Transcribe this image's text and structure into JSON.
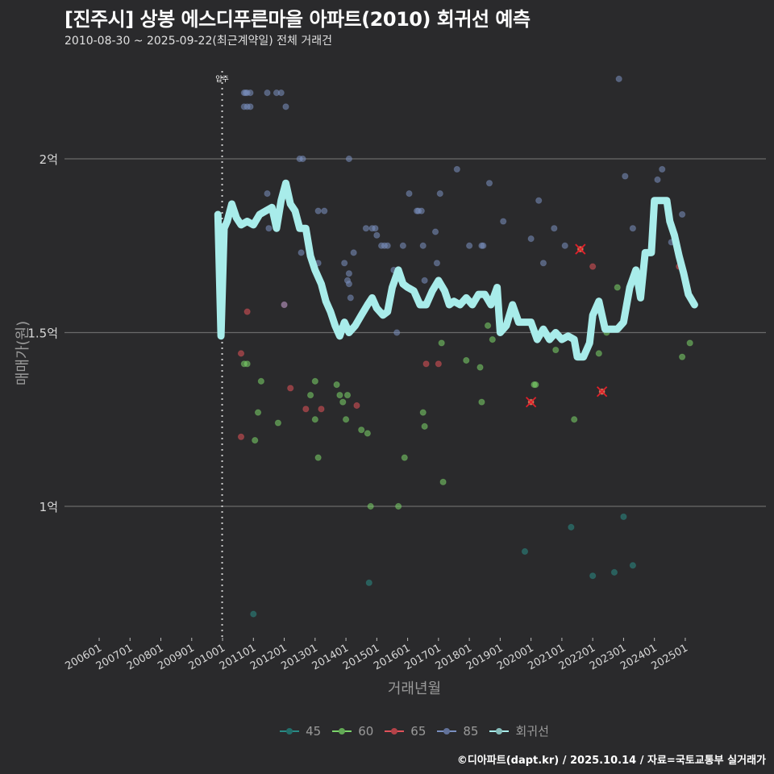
{
  "header": {
    "title": "[진주시] 상봉 에스디푸른마을 아파트(2010) 회귀선 예측",
    "subtitle": "2010-08-30 ~ 2025-09-22(최근계약일) 전체 거래건"
  },
  "footer": {
    "credit": "©디아파트(dapt.kr) / 2025.10.14 / 자료=국토교통부 실거래가"
  },
  "colors": {
    "background": "#2a2a2c",
    "grid": "#6a6a6a",
    "s45": "#2a8a85",
    "s60": "#7bd36a",
    "s65": "#e0525a",
    "s85": "#7a8fc0",
    "regression": "#a8ecea",
    "vline": "#cccccc"
  },
  "chart_data": {
    "type": "scatter",
    "title": "[진주시] 상봉 에스디푸른마을 아파트(2010) 회귀선 예측",
    "subtitle": "2010-08-30 ~ 2025-09-22(최근계약일) 전체 거래건",
    "xlabel": "거래년월",
    "ylabel": "매매가(원)",
    "x_ticks": [
      "200601",
      "200701",
      "200801",
      "200901",
      "201001",
      "201101",
      "201201",
      "201301",
      "201401",
      "201501",
      "201601",
      "201701",
      "201801",
      "201901",
      "202001",
      "202101",
      "202201",
      "202301",
      "202401",
      "202501"
    ],
    "y_ticks": [
      {
        "value": 1.0,
        "label": "1억"
      },
      {
        "value": 1.5,
        "label": "1.5억"
      },
      {
        "value": 2.0,
        "label": "2억"
      }
    ],
    "ylim": [
      0.62,
      2.45
    ],
    "xlim": [
      2006.0,
      2025.8
    ],
    "grid": "horizontal",
    "legend_position": "bottom",
    "annotation": {
      "label": "입주",
      "x": 2010.0,
      "style": "dotted vertical line"
    },
    "legend": [
      {
        "name": "45",
        "color_key": "s45"
      },
      {
        "name": "60",
        "color_key": "s60"
      },
      {
        "name": "65",
        "color_key": "s65"
      },
      {
        "name": "85",
        "color_key": "s85"
      },
      {
        "name": "회귀선",
        "color_key": "regression"
      }
    ],
    "series": [
      {
        "name": "45",
        "points": [
          [
            2011.0,
            0.69
          ],
          [
            2014.75,
            0.78
          ],
          [
            2019.8,
            0.87
          ],
          [
            2021.3,
            0.94
          ],
          [
            2022.0,
            0.8
          ],
          [
            2023.0,
            0.97
          ],
          [
            2023.3,
            0.83
          ],
          [
            2022.7,
            0.81
          ]
        ]
      },
      {
        "name": "60",
        "points": [
          [
            2010.7,
            1.41
          ],
          [
            2010.8,
            1.41
          ],
          [
            2011.05,
            1.19
          ],
          [
            2011.15,
            1.27
          ],
          [
            2011.25,
            1.36
          ],
          [
            2011.8,
            1.24
          ],
          [
            2012.85,
            1.32
          ],
          [
            2013.0,
            1.36
          ],
          [
            2013.0,
            1.25
          ],
          [
            2013.1,
            1.14
          ],
          [
            2013.7,
            1.35
          ],
          [
            2013.8,
            1.32
          ],
          [
            2013.9,
            1.3
          ],
          [
            2014.0,
            1.25
          ],
          [
            2014.05,
            1.32
          ],
          [
            2014.5,
            1.22
          ],
          [
            2014.7,
            1.21
          ],
          [
            2014.8,
            1.0
          ],
          [
            2015.7,
            1.0
          ],
          [
            2015.9,
            1.14
          ],
          [
            2016.5,
            1.27
          ],
          [
            2016.55,
            1.23
          ],
          [
            2017.1,
            1.47
          ],
          [
            2017.15,
            1.07
          ],
          [
            2017.9,
            1.42
          ],
          [
            2018.35,
            1.4
          ],
          [
            2018.4,
            1.3
          ],
          [
            2018.6,
            1.52
          ],
          [
            2018.75,
            1.48
          ],
          [
            2020.1,
            1.35
          ],
          [
            2020.15,
            1.35
          ],
          [
            2020.8,
            1.45
          ],
          [
            2021.4,
            1.25
          ],
          [
            2022.2,
            1.44
          ],
          [
            2022.45,
            1.5
          ],
          [
            2022.8,
            1.63
          ],
          [
            2024.9,
            1.43
          ],
          [
            2025.15,
            1.47
          ]
        ]
      },
      {
        "name": "65",
        "points": [
          [
            2010.6,
            1.44
          ],
          [
            2010.6,
            1.2
          ],
          [
            2010.8,
            1.56
          ],
          [
            2012.0,
            1.58
          ],
          [
            2012.2,
            1.34
          ],
          [
            2012.7,
            1.28
          ],
          [
            2013.2,
            1.28
          ],
          [
            2014.35,
            1.29
          ],
          [
            2016.6,
            1.41
          ],
          [
            2017.0,
            1.41
          ],
          [
            2021.6,
            1.74
          ],
          [
            2022.0,
            1.69
          ],
          [
            2024.8,
            1.69
          ],
          [
            2020.0,
            1.3
          ],
          [
            2022.3,
            1.33
          ]
        ]
      },
      {
        "name": "85",
        "points": [
          [
            2010.7,
            2.19
          ],
          [
            2010.75,
            2.19
          ],
          [
            2010.8,
            2.19
          ],
          [
            2010.9,
            2.19
          ],
          [
            2011.45,
            2.19
          ],
          [
            2011.75,
            2.19
          ],
          [
            2011.9,
            2.19
          ],
          [
            2010.7,
            2.15
          ],
          [
            2010.8,
            2.15
          ],
          [
            2010.9,
            2.15
          ],
          [
            2012.05,
            2.15
          ],
          [
            2012.5,
            2.0
          ],
          [
            2012.6,
            2.0
          ],
          [
            2011.5,
            1.8
          ],
          [
            2011.75,
            1.83
          ],
          [
            2011.45,
            1.9
          ],
          [
            2012.0,
            1.58
          ],
          [
            2012.55,
            1.73
          ],
          [
            2013.1,
            1.85
          ],
          [
            2013.3,
            1.85
          ],
          [
            2013.1,
            1.7
          ],
          [
            2013.95,
            1.7
          ],
          [
            2014.1,
            1.67
          ],
          [
            2014.05,
            1.65
          ],
          [
            2014.1,
            1.64
          ],
          [
            2014.15,
            1.6
          ],
          [
            2014.25,
            1.73
          ],
          [
            2014.1,
            2.0
          ],
          [
            2014.65,
            1.8
          ],
          [
            2014.85,
            1.8
          ],
          [
            2014.95,
            1.8
          ],
          [
            2015.0,
            1.78
          ],
          [
            2015.15,
            1.75
          ],
          [
            2015.25,
            1.75
          ],
          [
            2015.35,
            1.75
          ],
          [
            2015.65,
            1.5
          ],
          [
            2015.55,
            1.68
          ],
          [
            2015.85,
            1.75
          ],
          [
            2016.05,
            1.9
          ],
          [
            2016.3,
            1.85
          ],
          [
            2016.35,
            1.85
          ],
          [
            2016.45,
            1.85
          ],
          [
            2016.5,
            1.75
          ],
          [
            2016.55,
            1.65
          ],
          [
            2016.9,
            1.79
          ],
          [
            2016.95,
            1.7
          ],
          [
            2017.05,
            1.9
          ],
          [
            2017.6,
            1.97
          ],
          [
            2018.0,
            1.75
          ],
          [
            2018.4,
            1.75
          ],
          [
            2018.45,
            1.75
          ],
          [
            2018.65,
            1.93
          ],
          [
            2019.1,
            1.82
          ],
          [
            2020.0,
            1.77
          ],
          [
            2020.25,
            1.88
          ],
          [
            2020.4,
            1.7
          ],
          [
            2020.75,
            1.8
          ],
          [
            2021.1,
            1.75
          ],
          [
            2022.85,
            2.23
          ],
          [
            2023.05,
            1.95
          ],
          [
            2023.3,
            1.8
          ],
          [
            2024.1,
            1.94
          ],
          [
            2024.25,
            1.97
          ],
          [
            2024.55,
            1.76
          ],
          [
            2024.9,
            1.84
          ]
        ]
      }
    ],
    "markers_x": [
      [
        2021.6,
        1.74
      ],
      [
        2020.0,
        1.3
      ],
      [
        2022.3,
        1.33
      ]
    ],
    "regression": [
      [
        2009.85,
        1.84
      ],
      [
        2009.95,
        1.49
      ],
      [
        2010.05,
        1.8
      ],
      [
        2010.15,
        1.82
      ],
      [
        2010.3,
        1.87
      ],
      [
        2010.45,
        1.83
      ],
      [
        2010.6,
        1.81
      ],
      [
        2010.8,
        1.82
      ],
      [
        2011.0,
        1.81
      ],
      [
        2011.2,
        1.84
      ],
      [
        2011.4,
        1.85
      ],
      [
        2011.6,
        1.86
      ],
      [
        2011.75,
        1.8
      ],
      [
        2011.9,
        1.88
      ],
      [
        2012.05,
        1.93
      ],
      [
        2012.2,
        1.87
      ],
      [
        2012.35,
        1.85
      ],
      [
        2012.5,
        1.8
      ],
      [
        2012.7,
        1.8
      ],
      [
        2012.85,
        1.72
      ],
      [
        2013.0,
        1.68
      ],
      [
        2013.2,
        1.64
      ],
      [
        2013.35,
        1.59
      ],
      [
        2013.5,
        1.56
      ],
      [
        2013.65,
        1.52
      ],
      [
        2013.8,
        1.49
      ],
      [
        2013.95,
        1.53
      ],
      [
        2014.1,
        1.5
      ],
      [
        2014.3,
        1.52
      ],
      [
        2014.5,
        1.55
      ],
      [
        2014.7,
        1.58
      ],
      [
        2014.85,
        1.6
      ],
      [
        2015.0,
        1.57
      ],
      [
        2015.2,
        1.55
      ],
      [
        2015.35,
        1.56
      ],
      [
        2015.5,
        1.63
      ],
      [
        2015.7,
        1.68
      ],
      [
        2015.85,
        1.64
      ],
      [
        2016.0,
        1.63
      ],
      [
        2016.2,
        1.62
      ],
      [
        2016.4,
        1.58
      ],
      [
        2016.6,
        1.58
      ],
      [
        2016.8,
        1.62
      ],
      [
        2017.0,
        1.65
      ],
      [
        2017.2,
        1.62
      ],
      [
        2017.35,
        1.58
      ],
      [
        2017.5,
        1.59
      ],
      [
        2017.7,
        1.58
      ],
      [
        2017.9,
        1.6
      ],
      [
        2018.1,
        1.58
      ],
      [
        2018.3,
        1.61
      ],
      [
        2018.5,
        1.61
      ],
      [
        2018.7,
        1.58
      ],
      [
        2018.9,
        1.63
      ],
      [
        2019.0,
        1.5
      ],
      [
        2019.2,
        1.52
      ],
      [
        2019.4,
        1.58
      ],
      [
        2019.6,
        1.53
      ],
      [
        2019.8,
        1.53
      ],
      [
        2020.0,
        1.53
      ],
      [
        2020.2,
        1.48
      ],
      [
        2020.4,
        1.51
      ],
      [
        2020.6,
        1.48
      ],
      [
        2020.8,
        1.5
      ],
      [
        2021.0,
        1.48
      ],
      [
        2021.2,
        1.49
      ],
      [
        2021.4,
        1.48
      ],
      [
        2021.5,
        1.43
      ],
      [
        2021.7,
        1.43
      ],
      [
        2021.9,
        1.47
      ],
      [
        2022.0,
        1.55
      ],
      [
        2022.2,
        1.59
      ],
      [
        2022.4,
        1.51
      ],
      [
        2022.6,
        1.51
      ],
      [
        2022.8,
        1.51
      ],
      [
        2023.0,
        1.53
      ],
      [
        2023.2,
        1.63
      ],
      [
        2023.4,
        1.68
      ],
      [
        2023.55,
        1.6
      ],
      [
        2023.7,
        1.73
      ],
      [
        2023.9,
        1.73
      ],
      [
        2024.0,
        1.88
      ],
      [
        2024.2,
        1.88
      ],
      [
        2024.4,
        1.88
      ],
      [
        2024.5,
        1.82
      ],
      [
        2024.65,
        1.78
      ],
      [
        2024.8,
        1.72
      ],
      [
        2024.95,
        1.67
      ],
      [
        2025.1,
        1.61
      ],
      [
        2025.3,
        1.58
      ]
    ]
  }
}
